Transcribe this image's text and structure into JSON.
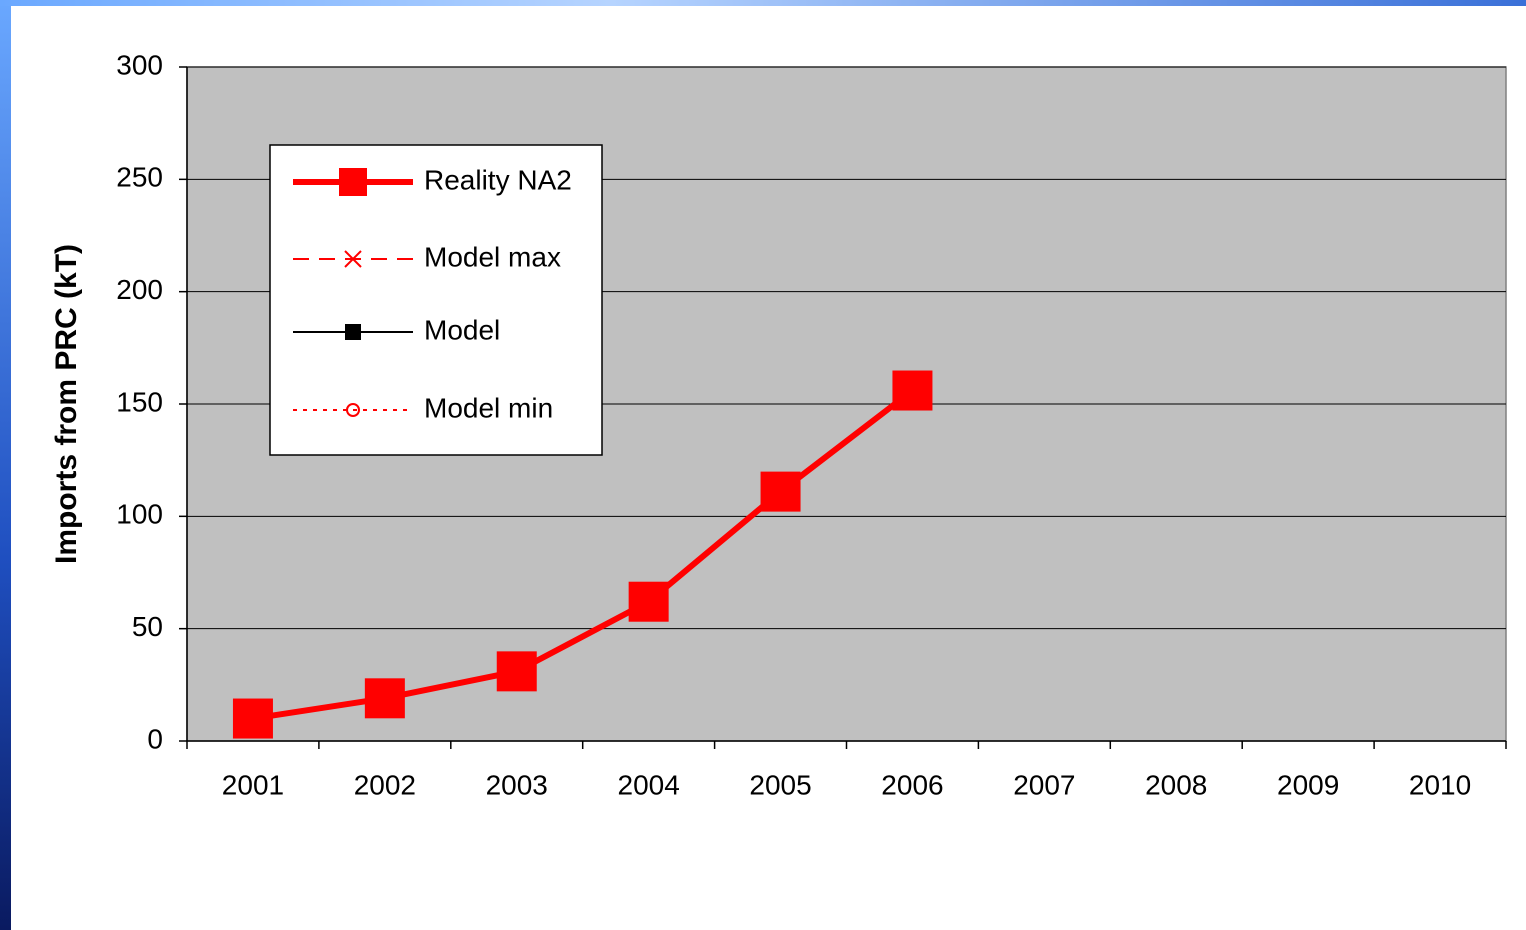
{
  "chart_data": {
    "type": "line",
    "y_label": "Imports from PRC (kT)",
    "categories": [
      "2001",
      "2002",
      "2003",
      "2004",
      "2005",
      "2006",
      "2007",
      "2008",
      "2009",
      "2010"
    ],
    "series": [
      {
        "name": "Reality NA2",
        "color": "#ff0000",
        "line_style": "solid",
        "line_width": 6,
        "marker": "square",
        "values": [
          10,
          19,
          31,
          62,
          111,
          156,
          null,
          null,
          null,
          null
        ]
      },
      {
        "name": "Model max",
        "color": "#ff0000",
        "line_style": "dashed",
        "line_width": 2,
        "marker": "x",
        "values": [
          null,
          null,
          null,
          null,
          null,
          null,
          null,
          null,
          null,
          null
        ]
      },
      {
        "name": "Model",
        "color": "#000000",
        "line_style": "solid",
        "line_width": 2,
        "marker": "square-small",
        "values": [
          null,
          null,
          null,
          null,
          null,
          null,
          null,
          null,
          null,
          null
        ]
      },
      {
        "name": "Model min",
        "color": "#ff0000",
        "line_style": "dotted",
        "line_width": 2,
        "marker": "circle",
        "values": [
          null,
          null,
          null,
          null,
          null,
          null,
          null,
          null,
          null,
          null
        ]
      }
    ],
    "ylim": [
      0,
      300
    ],
    "yticks": [
      0,
      50,
      100,
      150,
      200,
      250,
      300
    ],
    "grid": true,
    "legend": "upper left",
    "plot_background": "#c0c0c0"
  }
}
